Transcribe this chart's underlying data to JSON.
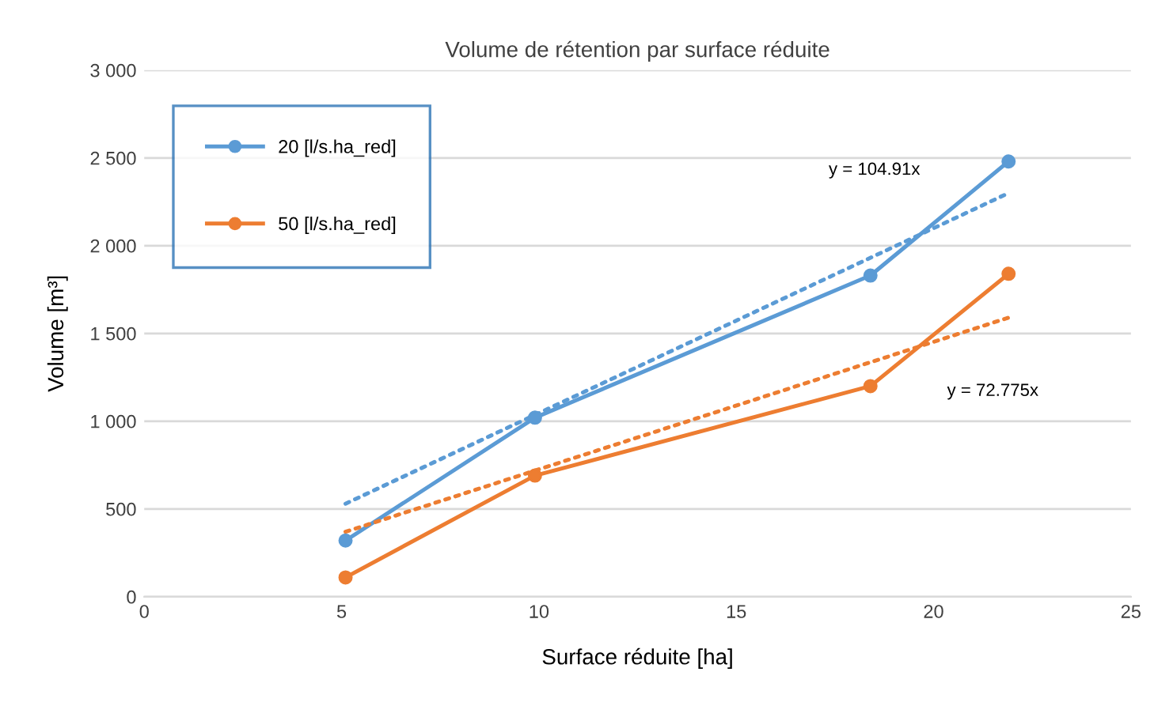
{
  "chart_data": {
    "type": "line",
    "title": "Volume de rétention par surface réduite",
    "xlabel": "Surface réduite [ha]",
    "ylabel": "Volume [m³]",
    "series": [
      {
        "name": "20 [l/s.ha_red]",
        "color": "#5b9bd5",
        "x": [
          5.1,
          9.9,
          18.4,
          21.9
        ],
        "values": [
          320,
          1020,
          1830,
          2480
        ],
        "marker": "circle",
        "line_style": "solid"
      },
      {
        "name": "50 [l/s.ha_red]",
        "color": "#ed7d31",
        "x": [
          5.1,
          9.9,
          18.4,
          21.9
        ],
        "values": [
          110,
          690,
          1200,
          1840
        ],
        "marker": "circle",
        "line_style": "solid"
      },
      {
        "color": "#5b9bd5",
        "x": [
          5.1,
          21.9
        ],
        "values": [
          530,
          2300
        ],
        "marker": "none",
        "line_style": "dotted"
      },
      {
        "color": "#ed7d31",
        "x": [
          5.1,
          21.9
        ],
        "values": [
          370,
          1590
        ],
        "marker": "none",
        "line_style": "dotted"
      }
    ],
    "annotations": [
      "y = 104.91x",
      "y = 72.775x"
    ],
    "xlim": [
      0,
      25
    ],
    "xticks": [
      0,
      5,
      10,
      15,
      20,
      25
    ],
    "ylim": [
      0,
      3000
    ],
    "yticks": [
      0,
      500,
      {
        "value": 1000,
        "label": "1 000"
      },
      {
        "value": 1500,
        "label": "1 500"
      },
      {
        "value": 2000,
        "label": "2 000"
      },
      {
        "value": 2500,
        "label": "2 500"
      },
      {
        "value": 3000,
        "label": "3 000"
      }
    ],
    "grid": "y",
    "legend": "top left"
  }
}
